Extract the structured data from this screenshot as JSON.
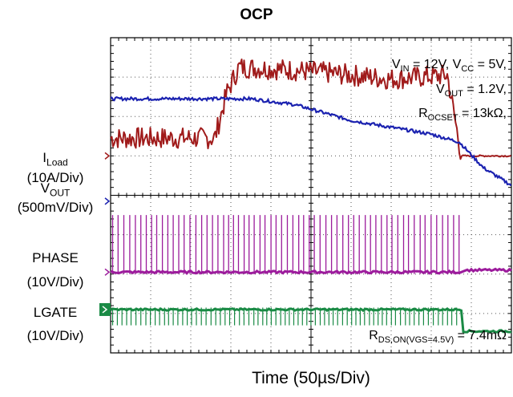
{
  "title": "OCP",
  "chart_data": {
    "type": "line",
    "title": "OCP",
    "xlabel": "Time (50µs/Div)",
    "x_divisions": 10,
    "y_divisions": 8,
    "grid": true,
    "channel_labels": [
      {
        "name": "I",
        "sub": "Load",
        "scale": "(10A/Div)",
        "color": "#a01b1b"
      },
      {
        "name": "V",
        "sub": "OUT",
        "scale": "(500mV/Div)",
        "color": "#1b22b0"
      },
      {
        "name": "PHASE",
        "sub": "",
        "scale": "(10V/Div)",
        "color": "#9c1c9c"
      },
      {
        "name": "LGATE",
        "sub": "",
        "scale": "(10V/Div)",
        "color": "#1a8a45"
      }
    ],
    "annotations": {
      "line1": {
        "a": "V",
        "a_sub": "IN",
        "a_val": " = 12V, ",
        "b": "V",
        "b_sub": "CC",
        "b_val": " = 5V,"
      },
      "line2": {
        "a": "V",
        "a_sub": "OUT",
        "a_val": " = 1.2V,"
      },
      "line3": {
        "a": "R",
        "a_sub": "OCSET",
        "a_val": " = 13kΩ,"
      },
      "line4": {
        "a": "R",
        "a_sub": "DS,ON(VGS=4.5V)",
        "a_val": " = 7.4mΩ"
      }
    },
    "series": [
      {
        "name": "ILoad",
        "color": "#a01b1b",
        "x": [
          0,
          2.6,
          2.9,
          3.2,
          4.2,
          5.5,
          7.0,
          8.4,
          8.75,
          10
        ],
        "y": [
          5.45,
          5.45,
          6.6,
          7.25,
          7.2,
          7.1,
          6.95,
          7.05,
          5.0,
          5.0
        ]
      },
      {
        "name": "VOUT",
        "color": "#1b22b0",
        "x": [
          0,
          2.0,
          3.5,
          4.6,
          6.0,
          8.0,
          8.7,
          9.3,
          10.0,
          11.0,
          12.5,
          14.0,
          15.0,
          20.0
        ],
        "y": [
          6.45,
          6.45,
          6.45,
          6.3,
          5.9,
          5.55,
          5.35,
          4.7,
          4.25,
          4.0,
          3.85,
          3.82,
          3.8,
          3.8
        ]
      },
      {
        "name": "PHASE",
        "color": "#9c1c9c",
        "x": [
          0,
          8.75,
          8.75,
          10
        ],
        "y": [
          2.05,
          2.05,
          2.1,
          2.1
        ]
      },
      {
        "name": "LGATE",
        "color": "#1a8a45",
        "x": [
          0,
          8.75,
          8.75,
          10
        ],
        "y": [
          1.1,
          1.1,
          0.55,
          0.55
        ]
      }
    ]
  }
}
